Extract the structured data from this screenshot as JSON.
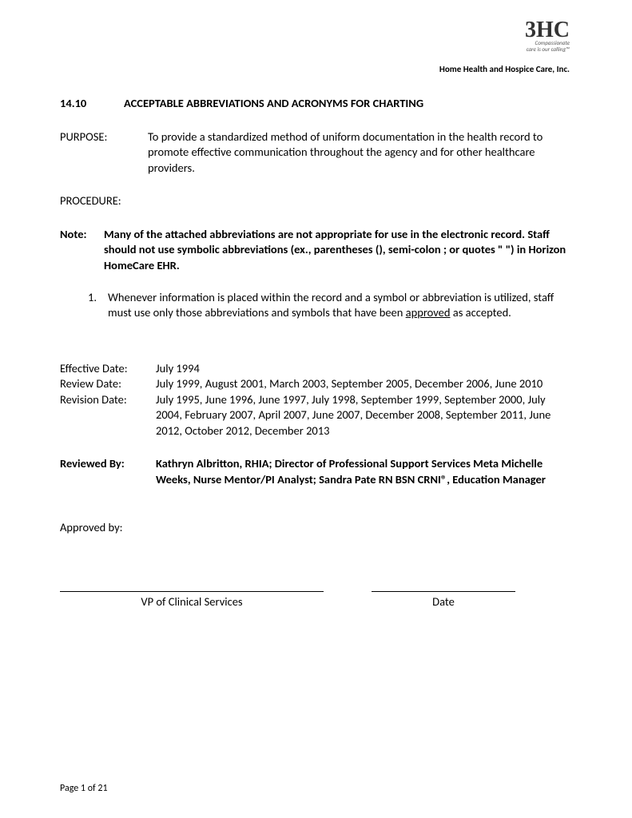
{
  "logo": {
    "main": "3HC",
    "tagline1": "Compassionate",
    "tagline2": "care is our calling™"
  },
  "company_name": "Home Health and Hospice Care, Inc.",
  "section_number": "14.10",
  "title": "ACCEPTABLE ABBREVIATIONS AND ACRONYMS FOR CHARTING",
  "purpose_label": "PURPOSE:",
  "purpose_text": "To provide a standardized method of uniform documentation in the health record to promote effective communication throughout the agency and for other healthcare providers.",
  "procedure_label": "PROCEDURE:",
  "note_label": "Note:",
  "note_text": "Many of the attached abbreviations are not appropriate for use in the electronic record.  Staff should not use symbolic abbreviations (ex., parentheses (), semi-colon ; or quotes \" \") in Horizon HomeCare EHR.",
  "list_item_number": "1.",
  "list_item_prefix": "Whenever information is placed within the record and a symbol or abbreviation is utilized, staff must use only those abbreviations and symbols that have been ",
  "list_item_underlined": "approved",
  "list_item_suffix": " as accepted.",
  "effective_label": "Effective Date:",
  "effective_value": "July 1994",
  "review_label": "Review Date:",
  "review_value": "July 1999, August 2001, March 2003, September 2005, December 2006, June 2010",
  "revision_label": "Revision Date:",
  "revision_value": "July 1995, June 1996, June 1997, July 1998, September 1999, September 2000, July 2004, February 2007, April 2007, June 2007, December 2008, September 2011, June 2012, October 2012, December 2013",
  "reviewed_label": "Reviewed By:",
  "reviewed_value": "Kathryn Albritton, RHIA; Director of Professional Support Services Meta Michelle Weeks, Nurse Mentor/PI Analyst; Sandra Pate RN BSN CRNI®, Education Manager",
  "approved_label": "Approved by:",
  "sig1_label": "VP of Clinical Services",
  "sig2_label": "Date",
  "footer": "Page 1 of 21"
}
